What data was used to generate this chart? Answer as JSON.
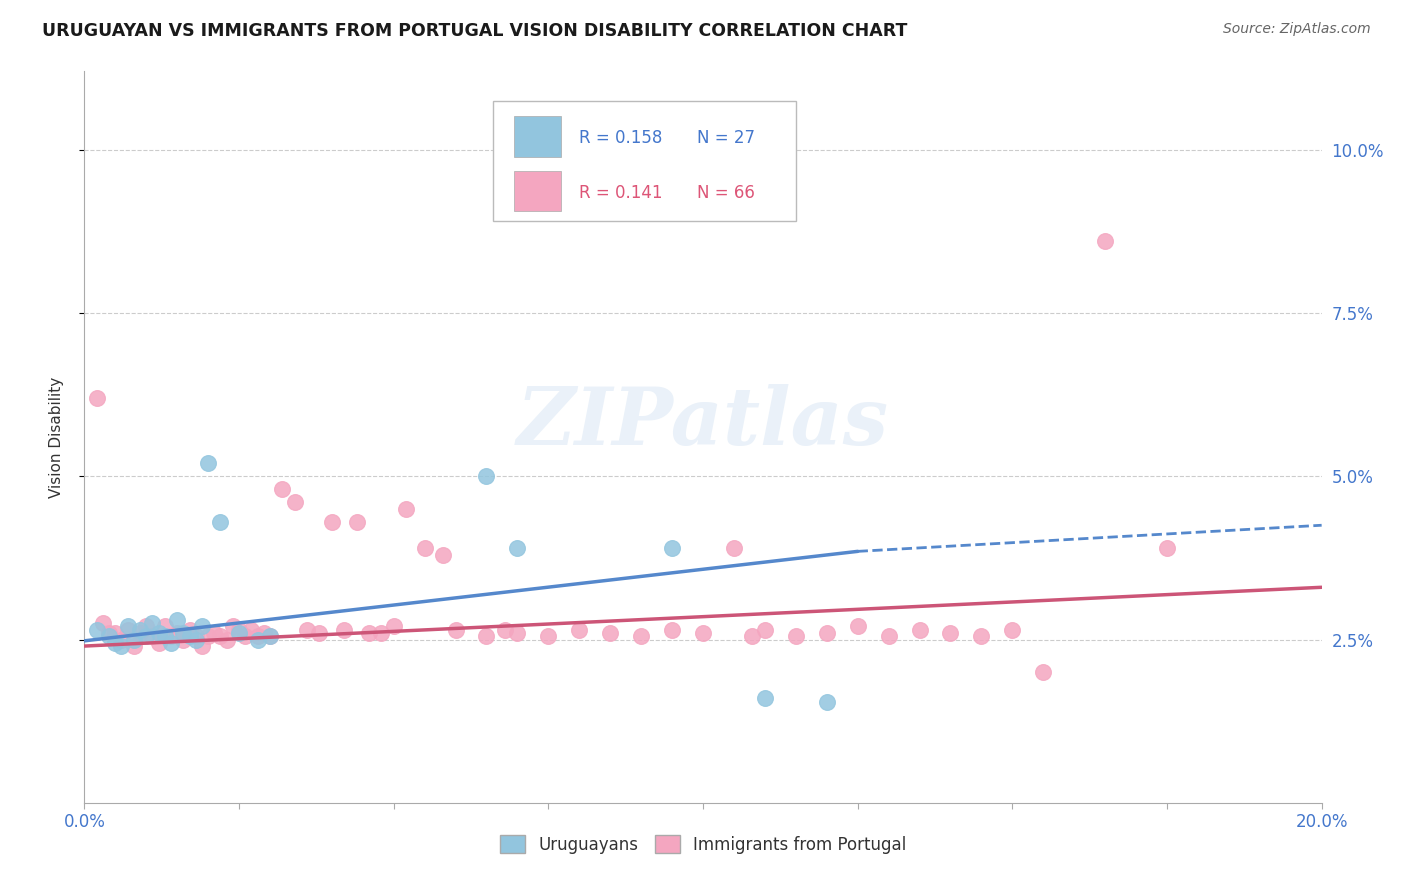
{
  "title": "URUGUAYAN VS IMMIGRANTS FROM PORTUGAL VISION DISABILITY CORRELATION CHART",
  "source": "Source: ZipAtlas.com",
  "ylabel": "Vision Disability",
  "xlim": [
    0.0,
    0.2
  ],
  "ylim": [
    0.0,
    0.112
  ],
  "xticks": [
    0.0,
    0.025,
    0.05,
    0.075,
    0.1,
    0.125,
    0.15,
    0.175,
    0.2
  ],
  "ytick_positions": [
    0.025,
    0.05,
    0.075,
    0.1
  ],
  "ytick_labels": [
    "2.5%",
    "5.0%",
    "7.5%",
    "10.0%"
  ],
  "grid_color": "#cccccc",
  "legend_r1": "R = 0.158",
  "legend_n1": "N = 27",
  "legend_r2": "R = 0.141",
  "legend_n2": "N = 66",
  "blue_color": "#92c5de",
  "pink_color": "#f4a6c0",
  "blue_line_color": "#5588cc",
  "pink_line_color": "#cc5577",
  "watermark": "ZIPatlas",
  "blue_scatter": [
    [
      0.002,
      0.0265
    ],
    [
      0.004,
      0.0255
    ],
    [
      0.005,
      0.0245
    ],
    [
      0.006,
      0.024
    ],
    [
      0.007,
      0.027
    ],
    [
      0.008,
      0.025
    ],
    [
      0.009,
      0.0265
    ],
    [
      0.01,
      0.0255
    ],
    [
      0.011,
      0.0275
    ],
    [
      0.012,
      0.026
    ],
    [
      0.013,
      0.0255
    ],
    [
      0.014,
      0.0245
    ],
    [
      0.015,
      0.028
    ],
    [
      0.016,
      0.026
    ],
    [
      0.017,
      0.0255
    ],
    [
      0.018,
      0.025
    ],
    [
      0.019,
      0.027
    ],
    [
      0.02,
      0.052
    ],
    [
      0.022,
      0.043
    ],
    [
      0.025,
      0.026
    ],
    [
      0.028,
      0.025
    ],
    [
      0.03,
      0.0255
    ],
    [
      0.065,
      0.05
    ],
    [
      0.07,
      0.039
    ],
    [
      0.095,
      0.039
    ],
    [
      0.11,
      0.016
    ],
    [
      0.12,
      0.0155
    ]
  ],
  "pink_scatter": [
    [
      0.002,
      0.062
    ],
    [
      0.003,
      0.0275
    ],
    [
      0.004,
      0.026
    ],
    [
      0.005,
      0.026
    ],
    [
      0.006,
      0.025
    ],
    [
      0.007,
      0.0265
    ],
    [
      0.008,
      0.024
    ],
    [
      0.009,
      0.026
    ],
    [
      0.01,
      0.027
    ],
    [
      0.011,
      0.0255
    ],
    [
      0.012,
      0.0245
    ],
    [
      0.013,
      0.027
    ],
    [
      0.014,
      0.0255
    ],
    [
      0.015,
      0.026
    ],
    [
      0.016,
      0.025
    ],
    [
      0.017,
      0.0265
    ],
    [
      0.018,
      0.0255
    ],
    [
      0.019,
      0.024
    ],
    [
      0.02,
      0.0255
    ],
    [
      0.021,
      0.026
    ],
    [
      0.022,
      0.0255
    ],
    [
      0.023,
      0.025
    ],
    [
      0.024,
      0.027
    ],
    [
      0.025,
      0.0265
    ],
    [
      0.026,
      0.0255
    ],
    [
      0.027,
      0.0265
    ],
    [
      0.028,
      0.0255
    ],
    [
      0.029,
      0.026
    ],
    [
      0.03,
      0.0255
    ],
    [
      0.032,
      0.048
    ],
    [
      0.034,
      0.046
    ],
    [
      0.036,
      0.0265
    ],
    [
      0.038,
      0.026
    ],
    [
      0.04,
      0.043
    ],
    [
      0.042,
      0.0265
    ],
    [
      0.044,
      0.043
    ],
    [
      0.046,
      0.026
    ],
    [
      0.048,
      0.026
    ],
    [
      0.05,
      0.027
    ],
    [
      0.052,
      0.045
    ],
    [
      0.055,
      0.039
    ],
    [
      0.058,
      0.038
    ],
    [
      0.06,
      0.0265
    ],
    [
      0.065,
      0.0255
    ],
    [
      0.068,
      0.0265
    ],
    [
      0.07,
      0.026
    ],
    [
      0.075,
      0.0255
    ],
    [
      0.08,
      0.0265
    ],
    [
      0.085,
      0.026
    ],
    [
      0.09,
      0.0255
    ],
    [
      0.095,
      0.0265
    ],
    [
      0.1,
      0.026
    ],
    [
      0.105,
      0.039
    ],
    [
      0.108,
      0.0255
    ],
    [
      0.11,
      0.0265
    ],
    [
      0.115,
      0.0255
    ],
    [
      0.12,
      0.026
    ],
    [
      0.125,
      0.027
    ],
    [
      0.13,
      0.0255
    ],
    [
      0.135,
      0.0265
    ],
    [
      0.14,
      0.026
    ],
    [
      0.145,
      0.0255
    ],
    [
      0.15,
      0.0265
    ],
    [
      0.155,
      0.02
    ],
    [
      0.165,
      0.086
    ],
    [
      0.175,
      0.039
    ]
  ],
  "blue_line_x0": 0.0,
  "blue_line_y0": 0.0248,
  "blue_line_x1": 0.125,
  "blue_line_y1": 0.0385,
  "blue_line_dash_x0": 0.125,
  "blue_line_dash_y0": 0.0385,
  "blue_line_dash_x1": 0.2,
  "blue_line_dash_y1": 0.0425,
  "pink_line_x0": 0.0,
  "pink_line_y0": 0.024,
  "pink_line_x1": 0.2,
  "pink_line_y1": 0.033
}
